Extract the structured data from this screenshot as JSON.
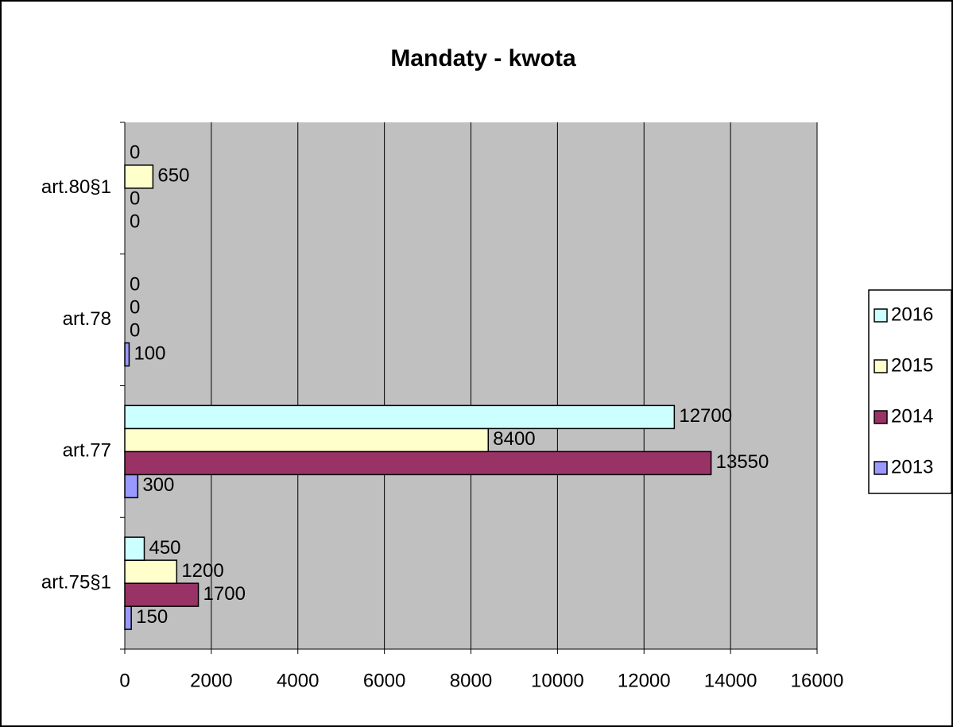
{
  "chart_data": {
    "type": "bar",
    "orientation": "horizontal",
    "title": "Mandaty - kwota",
    "categories": [
      "art.75§1",
      "art.77",
      "art.78",
      "art.80§1"
    ],
    "series": [
      {
        "name": "2013",
        "color": "#9999ff",
        "values": [
          150,
          300,
          100,
          0
        ]
      },
      {
        "name": "2014",
        "color": "#993366",
        "values": [
          1700,
          13550,
          0,
          0
        ]
      },
      {
        "name": "2015",
        "color": "#ffffcc",
        "values": [
          1200,
          8400,
          0,
          650
        ]
      },
      {
        "name": "2016",
        "color": "#ccffff",
        "values": [
          450,
          12700,
          0,
          0
        ]
      }
    ],
    "xlim": [
      0,
      16000
    ],
    "xticks": [
      0,
      2000,
      4000,
      6000,
      8000,
      10000,
      12000,
      14000,
      16000
    ],
    "grid": true,
    "legend": "right"
  }
}
